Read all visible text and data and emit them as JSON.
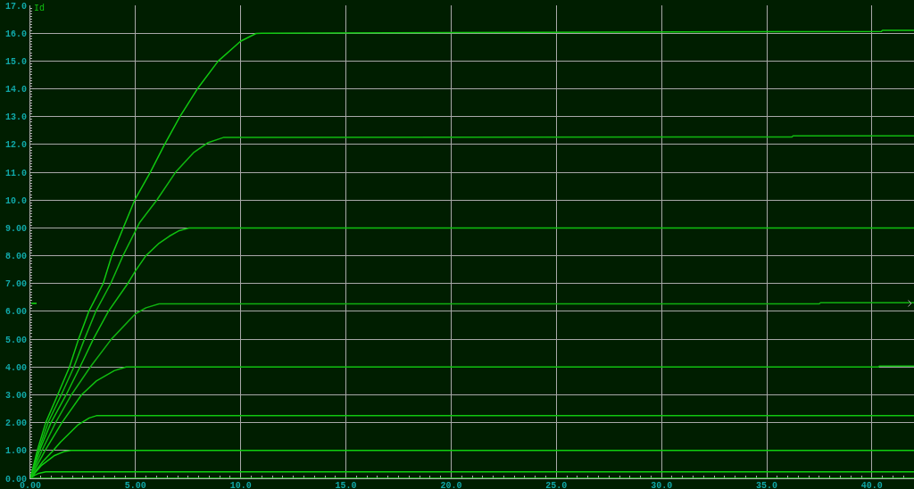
{
  "chart_data": {
    "type": "line",
    "ylabel": "Id",
    "grid": true,
    "line_style": "solid",
    "xlim": [
      0,
      42
    ],
    "ylim": [
      0,
      17
    ],
    "xticks": [
      {
        "value": 0,
        "label": "0.00"
      },
      {
        "value": 5,
        "label": "5.00"
      },
      {
        "value": 10,
        "label": "10.0"
      },
      {
        "value": 15,
        "label": "15.0"
      },
      {
        "value": 20,
        "label": "20.0"
      },
      {
        "value": 25,
        "label": "25.0"
      },
      {
        "value": 30,
        "label": "30.0"
      },
      {
        "value": 35,
        "label": "35.0"
      },
      {
        "value": 40,
        "label": "40.0"
      },
      {
        "value": 0.5,
        "label": null
      },
      {
        "value": 1,
        "label": null
      },
      {
        "value": 1.5,
        "label": null
      },
      {
        "value": 2,
        "label": null
      },
      {
        "value": 2.5,
        "label": null
      },
      {
        "value": 3,
        "label": null
      },
      {
        "value": 3.5,
        "label": null
      },
      {
        "value": 4,
        "label": null
      },
      {
        "value": 4.5,
        "label": null
      },
      {
        "value": 5.5,
        "label": null
      },
      {
        "value": 6,
        "label": null
      },
      {
        "value": 6.5,
        "label": null
      },
      {
        "value": 7,
        "label": null
      },
      {
        "value": 7.5,
        "label": null
      },
      {
        "value": 8,
        "label": null
      },
      {
        "value": 8.5,
        "label": null
      },
      {
        "value": 9,
        "label": null
      },
      {
        "value": 9.5,
        "label": null
      },
      {
        "value": 10.5,
        "label": null
      },
      {
        "value": 11,
        "label": null
      },
      {
        "value": 11.5,
        "label": null
      },
      {
        "value": 12,
        "label": null
      },
      {
        "value": 12.5,
        "label": null
      },
      {
        "value": 13,
        "label": null
      },
      {
        "value": 13.5,
        "label": null
      },
      {
        "value": 14,
        "label": null
      },
      {
        "value": 14.5,
        "label": null
      },
      {
        "value": 15.5,
        "label": null
      },
      {
        "value": 16,
        "label": null
      },
      {
        "value": 16.5,
        "label": null
      },
      {
        "value": 17,
        "label": null
      },
      {
        "value": 17.5,
        "label": null
      },
      {
        "value": 18,
        "label": null
      },
      {
        "value": 18.5,
        "label": null
      },
      {
        "value": 19,
        "label": null
      },
      {
        "value": 19.5,
        "label": null
      },
      {
        "value": 20.5,
        "label": null
      },
      {
        "value": 21,
        "label": null
      },
      {
        "value": 21.5,
        "label": null
      },
      {
        "value": 22,
        "label": null
      },
      {
        "value": 22.5,
        "label": null
      },
      {
        "value": 23,
        "label": null
      },
      {
        "value": 23.5,
        "label": null
      },
      {
        "value": 24,
        "label": null
      },
      {
        "value": 24.5,
        "label": null
      },
      {
        "value": 25.5,
        "label": null
      },
      {
        "value": 26,
        "label": null
      },
      {
        "value": 26.5,
        "label": null
      },
      {
        "value": 27,
        "label": null
      },
      {
        "value": 27.5,
        "label": null
      },
      {
        "value": 28,
        "label": null
      },
      {
        "value": 28.5,
        "label": null
      },
      {
        "value": 29,
        "label": null
      },
      {
        "value": 29.5,
        "label": null
      },
      {
        "value": 30.5,
        "label": null
      },
      {
        "value": 31,
        "label": null
      },
      {
        "value": 31.5,
        "label": null
      },
      {
        "value": 32,
        "label": null
      },
      {
        "value": 32.5,
        "label": null
      },
      {
        "value": 33,
        "label": null
      },
      {
        "value": 33.5,
        "label": null
      },
      {
        "value": 34,
        "label": null
      },
      {
        "value": 34.5,
        "label": null
      },
      {
        "value": 35.5,
        "label": null
      },
      {
        "value": 36,
        "label": null
      },
      {
        "value": 36.5,
        "label": null
      },
      {
        "value": 37,
        "label": null
      },
      {
        "value": 37.5,
        "label": null
      },
      {
        "value": 38,
        "label": null
      },
      {
        "value": 38.5,
        "label": null
      },
      {
        "value": 39,
        "label": null
      },
      {
        "value": 39.5,
        "label": null
      },
      {
        "value": 40.5,
        "label": null
      },
      {
        "value": 41,
        "label": null
      },
      {
        "value": 41.5,
        "label": null
      }
    ],
    "yticks": [
      {
        "value": 0,
        "label": "0.00"
      },
      {
        "value": 1,
        "label": "1.00"
      },
      {
        "value": 2,
        "label": "2.00"
      },
      {
        "value": 3,
        "label": "3.00"
      },
      {
        "value": 4,
        "label": "4.00"
      },
      {
        "value": 5,
        "label": "5.00"
      },
      {
        "value": 6,
        "label": "6.00"
      },
      {
        "value": 7,
        "label": "7.00"
      },
      {
        "value": 8,
        "label": "8.00"
      },
      {
        "value": 9,
        "label": "9.00"
      },
      {
        "value": 10,
        "label": "10.0"
      },
      {
        "value": 11,
        "label": "11.0"
      },
      {
        "value": 12,
        "label": "12.0"
      },
      {
        "value": 13,
        "label": "13.0"
      },
      {
        "value": 14,
        "label": "14.0"
      },
      {
        "value": 15,
        "label": "15.0"
      },
      {
        "value": 16,
        "label": "16.0"
      },
      {
        "value": 17,
        "label": "17.0"
      },
      {
        "value": 0.1,
        "label": null
      },
      {
        "value": 0.2,
        "label": null
      },
      {
        "value": 0.3,
        "label": null
      },
      {
        "value": 0.4,
        "label": null
      },
      {
        "value": 0.5,
        "label": null
      },
      {
        "value": 0.6,
        "label": null
      },
      {
        "value": 0.7,
        "label": null
      },
      {
        "value": 0.8,
        "label": null
      },
      {
        "value": 0.9,
        "label": null
      },
      {
        "value": 1.1,
        "label": null
      },
      {
        "value": 1.2,
        "label": null
      },
      {
        "value": 1.3,
        "label": null
      },
      {
        "value": 1.4,
        "label": null
      },
      {
        "value": 1.5,
        "label": null
      },
      {
        "value": 1.6,
        "label": null
      },
      {
        "value": 1.7,
        "label": null
      },
      {
        "value": 1.8,
        "label": null
      },
      {
        "value": 1.9,
        "label": null
      },
      {
        "value": 2.1,
        "label": null
      },
      {
        "value": 2.2,
        "label": null
      },
      {
        "value": 2.3,
        "label": null
      },
      {
        "value": 2.4,
        "label": null
      },
      {
        "value": 2.5,
        "label": null
      },
      {
        "value": 2.6,
        "label": null
      },
      {
        "value": 2.7,
        "label": null
      },
      {
        "value": 2.8,
        "label": null
      },
      {
        "value": 2.9,
        "label": null
      },
      {
        "value": 3.1,
        "label": null
      },
      {
        "value": 3.2,
        "label": null
      },
      {
        "value": 3.3,
        "label": null
      },
      {
        "value": 3.4,
        "label": null
      },
      {
        "value": 3.5,
        "label": null
      },
      {
        "value": 3.6,
        "label": null
      },
      {
        "value": 3.7,
        "label": null
      },
      {
        "value": 3.8,
        "label": null
      },
      {
        "value": 3.9,
        "label": null
      },
      {
        "value": 4.1,
        "label": null
      },
      {
        "value": 4.2,
        "label": null
      },
      {
        "value": 4.3,
        "label": null
      },
      {
        "value": 4.4,
        "label": null
      },
      {
        "value": 4.5,
        "label": null
      },
      {
        "value": 4.6,
        "label": null
      },
      {
        "value": 4.7,
        "label": null
      },
      {
        "value": 4.8,
        "label": null
      },
      {
        "value": 4.9,
        "label": null
      },
      {
        "value": 5.1,
        "label": null
      },
      {
        "value": 5.2,
        "label": null
      },
      {
        "value": 5.3,
        "label": null
      },
      {
        "value": 5.4,
        "label": null
      },
      {
        "value": 5.5,
        "label": null
      },
      {
        "value": 5.6,
        "label": null
      },
      {
        "value": 5.7,
        "label": null
      },
      {
        "value": 5.8,
        "label": null
      },
      {
        "value": 5.9,
        "label": null
      },
      {
        "value": 6.1,
        "label": null
      },
      {
        "value": 6.2,
        "label": null
      },
      {
        "value": 6.3,
        "label": null
      },
      {
        "value": 6.4,
        "label": null
      },
      {
        "value": 6.5,
        "label": null
      },
      {
        "value": 6.6,
        "label": null
      },
      {
        "value": 6.7,
        "label": null
      },
      {
        "value": 6.8,
        "label": null
      },
      {
        "value": 6.9,
        "label": null
      },
      {
        "value": 7.1,
        "label": null
      },
      {
        "value": 7.2,
        "label": null
      },
      {
        "value": 7.3,
        "label": null
      },
      {
        "value": 7.4,
        "label": null
      },
      {
        "value": 7.5,
        "label": null
      },
      {
        "value": 7.6,
        "label": null
      },
      {
        "value": 7.7,
        "label": null
      },
      {
        "value": 7.8,
        "label": null
      },
      {
        "value": 7.9,
        "label": null
      },
      {
        "value": 8.1,
        "label": null
      },
      {
        "value": 8.2,
        "label": null
      },
      {
        "value": 8.3,
        "label": null
      },
      {
        "value": 8.4,
        "label": null
      },
      {
        "value": 8.5,
        "label": null
      },
      {
        "value": 8.6,
        "label": null
      },
      {
        "value": 8.7,
        "label": null
      },
      {
        "value": 8.8,
        "label": null
      },
      {
        "value": 8.9,
        "label": null
      },
      {
        "value": 9.1,
        "label": null
      },
      {
        "value": 9.2,
        "label": null
      },
      {
        "value": 9.3,
        "label": null
      },
      {
        "value": 9.4,
        "label": null
      },
      {
        "value": 9.5,
        "label": null
      },
      {
        "value": 9.6,
        "label": null
      },
      {
        "value": 9.7,
        "label": null
      },
      {
        "value": 9.8,
        "label": null
      },
      {
        "value": 9.9,
        "label": null
      },
      {
        "value": 10.1,
        "label": null
      },
      {
        "value": 10.2,
        "label": null
      },
      {
        "value": 10.3,
        "label": null
      },
      {
        "value": 10.4,
        "label": null
      },
      {
        "value": 10.5,
        "label": null
      },
      {
        "value": 10.6,
        "label": null
      },
      {
        "value": 10.7,
        "label": null
      },
      {
        "value": 10.8,
        "label": null
      },
      {
        "value": 10.9,
        "label": null
      },
      {
        "value": 11.1,
        "label": null
      },
      {
        "value": 11.2,
        "label": null
      },
      {
        "value": 11.3,
        "label": null
      },
      {
        "value": 11.4,
        "label": null
      },
      {
        "value": 11.5,
        "label": null
      },
      {
        "value": 11.6,
        "label": null
      },
      {
        "value": 11.7,
        "label": null
      },
      {
        "value": 11.8,
        "label": null
      },
      {
        "value": 11.9,
        "label": null
      },
      {
        "value": 12.1,
        "label": null
      },
      {
        "value": 12.2,
        "label": null
      },
      {
        "value": 12.3,
        "label": null
      },
      {
        "value": 12.4,
        "label": null
      },
      {
        "value": 12.5,
        "label": null
      },
      {
        "value": 12.6,
        "label": null
      },
      {
        "value": 12.7,
        "label": null
      },
      {
        "value": 12.8,
        "label": null
      },
      {
        "value": 12.9,
        "label": null
      },
      {
        "value": 13.1,
        "label": null
      },
      {
        "value": 13.2,
        "label": null
      },
      {
        "value": 13.3,
        "label": null
      },
      {
        "value": 13.4,
        "label": null
      },
      {
        "value": 13.5,
        "label": null
      },
      {
        "value": 13.6,
        "label": null
      },
      {
        "value": 13.7,
        "label": null
      },
      {
        "value": 13.8,
        "label": null
      },
      {
        "value": 13.9,
        "label": null
      },
      {
        "value": 14.1,
        "label": null
      },
      {
        "value": 14.2,
        "label": null
      },
      {
        "value": 14.3,
        "label": null
      },
      {
        "value": 14.4,
        "label": null
      },
      {
        "value": 14.5,
        "label": null
      },
      {
        "value": 14.6,
        "label": null
      },
      {
        "value": 14.7,
        "label": null
      },
      {
        "value": 14.8,
        "label": null
      },
      {
        "value": 14.9,
        "label": null
      },
      {
        "value": 15.1,
        "label": null
      },
      {
        "value": 15.2,
        "label": null
      },
      {
        "value": 15.3,
        "label": null
      },
      {
        "value": 15.4,
        "label": null
      },
      {
        "value": 15.5,
        "label": null
      },
      {
        "value": 15.6,
        "label": null
      },
      {
        "value": 15.7,
        "label": null
      },
      {
        "value": 15.8,
        "label": null
      },
      {
        "value": 15.9,
        "label": null
      },
      {
        "value": 16.1,
        "label": null
      },
      {
        "value": 16.2,
        "label": null
      },
      {
        "value": 16.3,
        "label": null
      },
      {
        "value": 16.4,
        "label": null
      },
      {
        "value": 16.5,
        "label": null
      },
      {
        "value": 16.6,
        "label": null
      },
      {
        "value": 16.7,
        "label": null
      },
      {
        "value": 16.8,
        "label": null
      },
      {
        "value": 16.9,
        "label": null
      }
    ],
    "series": [
      {
        "color": "#10d010",
        "x": [
          0,
          42
        ],
        "values": [
          0,
          0
        ]
      },
      {
        "color": "#10d010",
        "x": [
          0,
          0.2,
          0.4,
          0.73,
          42
        ],
        "values": [
          0,
          0.11,
          0.18,
          0.23,
          0.23
        ]
      },
      {
        "color": "#10d010",
        "x": [
          0,
          0.51,
          1.15,
          1.6,
          1.93,
          42
        ],
        "values": [
          0,
          0.45,
          0.82,
          0.96,
          1.0,
          1.0
        ]
      },
      {
        "color": "#10c810",
        "x": [
          0,
          0.59,
          1.09,
          1.43,
          2.28,
          2.8,
          3.14,
          42
        ],
        "values": [
          0,
          0.6,
          1.0,
          1.3,
          1.93,
          2.17,
          2.25,
          2.25
        ]
      },
      {
        "color": "#10c010",
        "x": [
          0,
          0.7,
          1.5,
          2.43,
          3.14,
          3.99,
          4.55,
          40.3,
          40.35,
          42
        ],
        "values": [
          0,
          1,
          2,
          3,
          3.5,
          3.87,
          4.0,
          4.0,
          4.03,
          4.03
        ]
      },
      {
        "color": "#10b010",
        "x": [
          0,
          0.55,
          1.2,
          1.95,
          2.85,
          3.85,
          4.99,
          5.5,
          6.12,
          37.5,
          37.55,
          42
        ],
        "values": [
          0,
          1,
          2,
          3,
          4,
          5,
          5.91,
          6.13,
          6.27,
          6.27,
          6.31,
          6.31
        ]
      },
      {
        "color": "#10c010",
        "x": [
          0,
          0.44,
          0.98,
          1.7,
          2.36,
          2.99,
          3.71,
          4.63,
          5.0,
          5.49,
          6.12,
          6.6,
          7.04,
          7.54,
          42
        ],
        "values": [
          0,
          1,
          2,
          3,
          4,
          5,
          6,
          7,
          7.46,
          8,
          8.45,
          8.7,
          8.89,
          9.0,
          9.0
        ]
      },
      {
        "color": "#10b810",
        "x": [
          0,
          0.39,
          0.84,
          1.47,
          2.07,
          2.57,
          3.11,
          3.82,
          4.4,
          5.2,
          6.01,
          6.9,
          7.75,
          8.46,
          9.17,
          36.2,
          36.25,
          42
        ],
        "values": [
          0,
          1,
          2,
          3,
          4,
          5,
          6,
          7,
          8,
          9.2,
          10,
          11,
          11.7,
          12.07,
          12.25,
          12.27,
          12.31,
          12.31
        ]
      },
      {
        "color": "#10c810",
        "x": [
          0,
          0.33,
          0.73,
          1.3,
          1.86,
          2.29,
          2.78,
          3.46,
          3.87,
          4.96,
          5.7,
          6.38,
          7.11,
          7.94,
          8.93,
          9.99,
          10.73,
          11.0,
          24,
          40.45,
          40.5,
          42
        ],
        "values": [
          0,
          1,
          2,
          3,
          4,
          5,
          6,
          7,
          8,
          10,
          11,
          12,
          13,
          14,
          15,
          15.71,
          15.99,
          16.0,
          16.03,
          16.06,
          16.1,
          16.1
        ]
      }
    ]
  }
}
